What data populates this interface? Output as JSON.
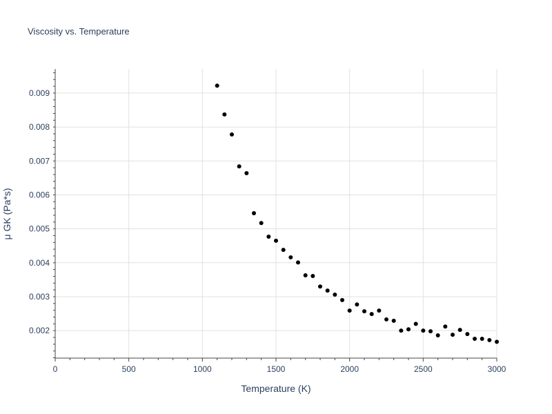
{
  "chart_data": {
    "type": "scatter",
    "title": "Viscosity vs. Temperature",
    "xlabel": "Temperature (K)",
    "ylabel": "μ GK (Pa*s)",
    "xlim": [
      0,
      3000
    ],
    "ylim": [
      0.00119,
      0.00971
    ],
    "xticks": [
      0,
      500,
      1000,
      1500,
      2000,
      2500,
      3000
    ],
    "xtick_labels": [
      "0",
      "500",
      "1000",
      "1500",
      "2000",
      "2500",
      "3000"
    ],
    "yticks": [
      0.002,
      0.003,
      0.004,
      0.005,
      0.006,
      0.007,
      0.008,
      0.009
    ],
    "ytick_labels": [
      "0.002",
      "0.003",
      "0.004",
      "0.005",
      "0.006",
      "0.007",
      "0.008",
      "0.009"
    ],
    "grid": true,
    "marker_color": "#000000",
    "x": [
      1100,
      1150,
      1200,
      1250,
      1300,
      1350,
      1400,
      1450,
      1500,
      1550,
      1600,
      1650,
      1700,
      1750,
      1800,
      1850,
      1900,
      1950,
      2000,
      2050,
      2100,
      2150,
      2200,
      2250,
      2300,
      2350,
      2400,
      2450,
      2500,
      2550,
      2600,
      2650,
      2700,
      2750,
      2800,
      2850,
      2900,
      2950,
      3000
    ],
    "y": [
      0.00922,
      0.00837,
      0.00778,
      0.00684,
      0.00664,
      0.00546,
      0.00517,
      0.00477,
      0.00465,
      0.00438,
      0.00416,
      0.00401,
      0.00363,
      0.00361,
      0.0033,
      0.00318,
      0.00306,
      0.0029,
      0.00259,
      0.00277,
      0.00257,
      0.00249,
      0.00259,
      0.00233,
      0.00229,
      0.002,
      0.00204,
      0.0022,
      0.002,
      0.00198,
      0.00186,
      0.00212,
      0.00188,
      0.00202,
      0.0019,
      0.00176,
      0.00176,
      0.00172,
      0.00167
    ]
  }
}
